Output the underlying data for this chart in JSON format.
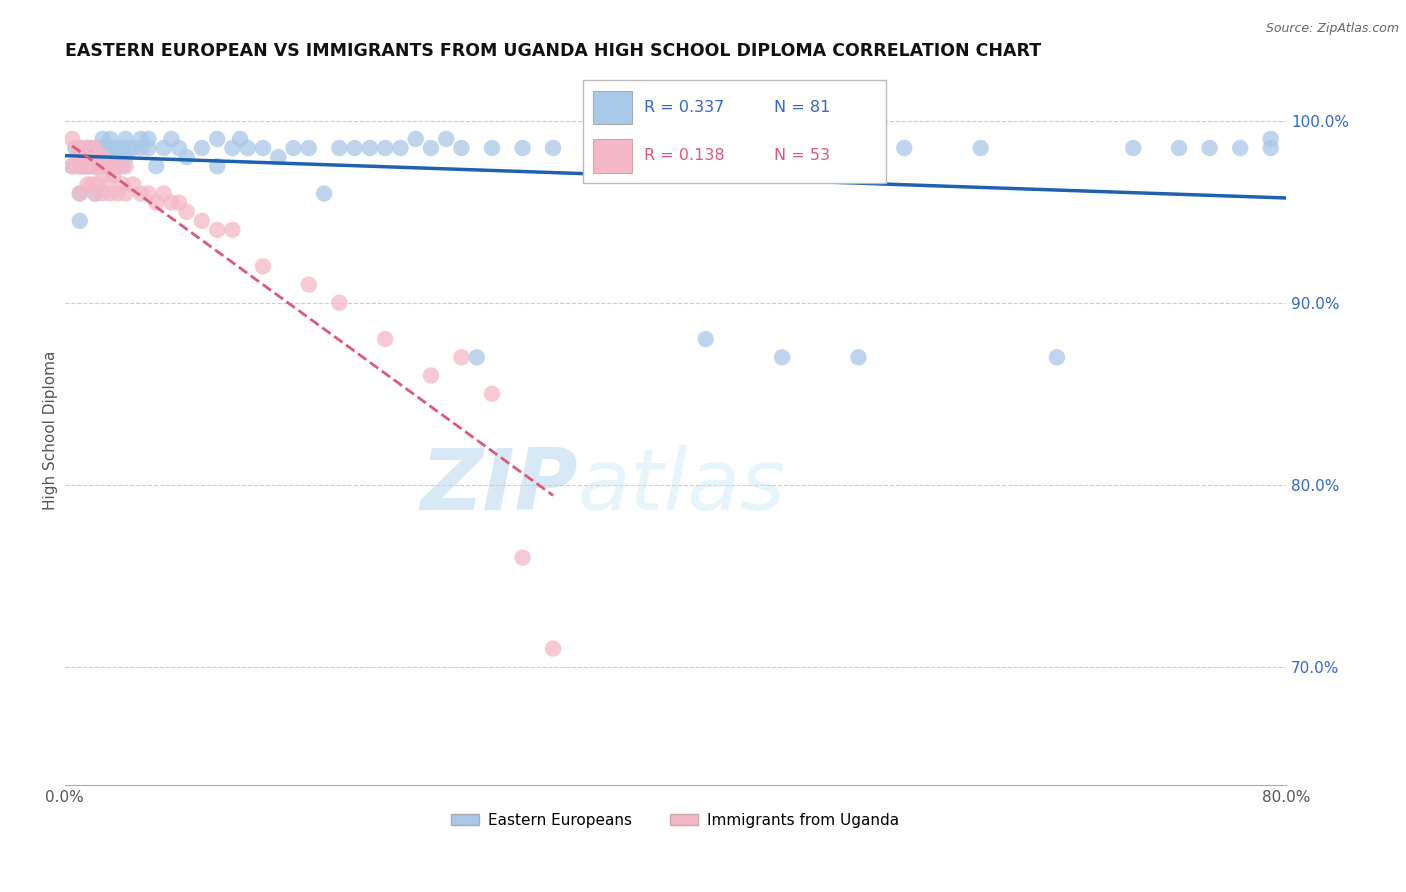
{
  "title": "EASTERN EUROPEAN VS IMMIGRANTS FROM UGANDA HIGH SCHOOL DIPLOMA CORRELATION CHART",
  "source": "Source: ZipAtlas.com",
  "ylabel": "High School Diploma",
  "xlim": [
    0.0,
    0.8
  ],
  "ylim": [
    0.635,
    1.025
  ],
  "yticks_right": [
    0.7,
    0.8,
    0.9,
    1.0
  ],
  "yticklabels_right": [
    "70.0%",
    "80.0%",
    "90.0%",
    "100.0%"
  ],
  "blue_R": 0.337,
  "blue_N": 81,
  "pink_R": 0.138,
  "pink_N": 53,
  "blue_color": "#a8c8e8",
  "pink_color": "#f4b8c8",
  "trendline_blue": "#2060b0",
  "trendline_pink": "#e05878",
  "watermark_zip": "ZIP",
  "watermark_atlas": "atlas",
  "blue_scatter_x": [
    0.005,
    0.007,
    0.01,
    0.01,
    0.01,
    0.012,
    0.015,
    0.015,
    0.018,
    0.018,
    0.02,
    0.02,
    0.022,
    0.022,
    0.025,
    0.025,
    0.025,
    0.028,
    0.028,
    0.03,
    0.03,
    0.032,
    0.032,
    0.035,
    0.035,
    0.038,
    0.038,
    0.04,
    0.04,
    0.042,
    0.045,
    0.05,
    0.05,
    0.055,
    0.055,
    0.06,
    0.065,
    0.07,
    0.075,
    0.08,
    0.09,
    0.1,
    0.1,
    0.11,
    0.115,
    0.12,
    0.13,
    0.14,
    0.15,
    0.16,
    0.17,
    0.18,
    0.19,
    0.2,
    0.21,
    0.22,
    0.23,
    0.24,
    0.25,
    0.26,
    0.27,
    0.28,
    0.3,
    0.32,
    0.35,
    0.37,
    0.4,
    0.42,
    0.45,
    0.47,
    0.5,
    0.52,
    0.55,
    0.6,
    0.65,
    0.7,
    0.73,
    0.75,
    0.77,
    0.79,
    0.79
  ],
  "blue_scatter_y": [
    0.975,
    0.985,
    0.975,
    0.96,
    0.945,
    0.975,
    0.985,
    0.975,
    0.985,
    0.975,
    0.975,
    0.96,
    0.985,
    0.975,
    0.99,
    0.985,
    0.975,
    0.985,
    0.975,
    0.99,
    0.985,
    0.985,
    0.975,
    0.985,
    0.975,
    0.985,
    0.975,
    0.99,
    0.98,
    0.985,
    0.985,
    0.99,
    0.985,
    0.99,
    0.985,
    0.975,
    0.985,
    0.99,
    0.985,
    0.98,
    0.985,
    0.99,
    0.975,
    0.985,
    0.99,
    0.985,
    0.985,
    0.98,
    0.985,
    0.985,
    0.96,
    0.985,
    0.985,
    0.985,
    0.985,
    0.985,
    0.99,
    0.985,
    0.99,
    0.985,
    0.87,
    0.985,
    0.985,
    0.985,
    0.985,
    0.97,
    0.985,
    0.88,
    0.985,
    0.87,
    0.985,
    0.87,
    0.985,
    0.985,
    0.87,
    0.985,
    0.985,
    0.985,
    0.985,
    0.99,
    0.985
  ],
  "pink_scatter_x": [
    0.005,
    0.005,
    0.007,
    0.008,
    0.01,
    0.01,
    0.01,
    0.012,
    0.012,
    0.015,
    0.015,
    0.015,
    0.018,
    0.018,
    0.018,
    0.02,
    0.02,
    0.02,
    0.022,
    0.022,
    0.025,
    0.025,
    0.025,
    0.028,
    0.028,
    0.03,
    0.03,
    0.032,
    0.035,
    0.035,
    0.038,
    0.04,
    0.04,
    0.045,
    0.05,
    0.055,
    0.06,
    0.065,
    0.07,
    0.075,
    0.08,
    0.09,
    0.1,
    0.11,
    0.13,
    0.16,
    0.18,
    0.21,
    0.24,
    0.26,
    0.28,
    0.3,
    0.32
  ],
  "pink_scatter_y": [
    0.99,
    0.975,
    0.975,
    0.985,
    0.985,
    0.975,
    0.96,
    0.985,
    0.975,
    0.985,
    0.975,
    0.965,
    0.985,
    0.975,
    0.965,
    0.985,
    0.975,
    0.96,
    0.975,
    0.965,
    0.98,
    0.97,
    0.96,
    0.975,
    0.965,
    0.975,
    0.96,
    0.97,
    0.975,
    0.96,
    0.965,
    0.975,
    0.96,
    0.965,
    0.96,
    0.96,
    0.955,
    0.96,
    0.955,
    0.955,
    0.95,
    0.945,
    0.94,
    0.94,
    0.92,
    0.91,
    0.9,
    0.88,
    0.86,
    0.87,
    0.85,
    0.76,
    0.71
  ]
}
